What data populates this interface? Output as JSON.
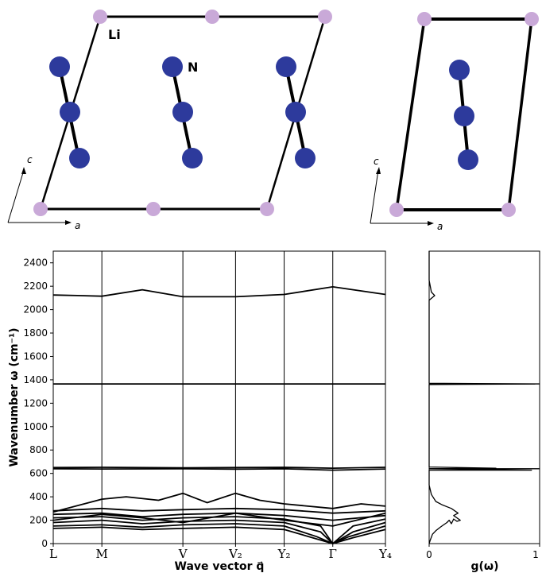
{
  "structure": {
    "atom_labels": {
      "lithium": "Li",
      "nitrogen": "N"
    },
    "axis_labels": {
      "vertical": "c",
      "horizontal": "a"
    },
    "colors": {
      "lithium": "#c9a9d8",
      "nitrogen": "#2d3a9c",
      "bond": "#000000"
    }
  },
  "chart_data": [
    {
      "type": "line",
      "name": "phonon-dispersion",
      "xlabel": "Wave vector q⃗",
      "ylabel": "Wavenumber ω (cm⁻¹)",
      "ylim": [
        0,
        2500
      ],
      "yticks": [
        0,
        200,
        400,
        600,
        800,
        1000,
        1200,
        1400,
        1600,
        1800,
        2000,
        2200,
        2400
      ],
      "kpoints": [
        "L",
        "M",
        "V",
        "V₂",
        "Y₂",
        "Γ",
        "Y₄"
      ],
      "kpoint_positions": [
        0,
        0.6,
        1.6,
        2.25,
        2.85,
        3.45,
        4.1
      ],
      "grid": "vertical lines at k-points",
      "series": [
        {
          "x": [
            0,
            0.3,
            0.6,
            1.1,
            1.6,
            2.25,
            2.85,
            3.45,
            4.1
          ],
          "y": [
            2125,
            2120,
            2115,
            2170,
            2110,
            2110,
            2130,
            2195,
            2130
          ]
        },
        {
          "x": [
            0,
            4.1
          ],
          "y": [
            1365,
            1365
          ]
        },
        {
          "x": [
            0,
            0.6,
            1.6,
            2.25,
            2.85,
            3.45,
            4.1
          ],
          "y": [
            650,
            652,
            648,
            650,
            652,
            645,
            652
          ]
        },
        {
          "x": [
            0,
            0.6,
            1.6,
            2.25,
            2.85,
            3.45,
            4.1
          ],
          "y": [
            640,
            638,
            640,
            636,
            640,
            628,
            638
          ]
        },
        {
          "x": [
            0,
            0.6,
            0.9,
            1.3,
            1.6,
            1.9,
            2.25,
            2.55,
            2.85,
            3.45,
            3.8,
            4.1
          ],
          "y": [
            270,
            380,
            400,
            370,
            430,
            350,
            430,
            370,
            340,
            300,
            340,
            320
          ]
        },
        {
          "x": [
            0,
            0.6,
            1.1,
            1.6,
            2.25,
            2.85,
            3.45,
            4.1
          ],
          "y": [
            280,
            300,
            280,
            290,
            300,
            290,
            260,
            280
          ]
        },
        {
          "x": [
            0,
            0.6,
            1.1,
            1.6,
            2.25,
            2.85,
            3.45,
            4.1
          ],
          "y": [
            250,
            260,
            230,
            250,
            260,
            240,
            200,
            240
          ]
        },
        {
          "x": [
            0,
            0.6,
            1.1,
            1.6,
            2.25,
            2.85,
            3.3,
            3.45,
            3.7,
            4.1
          ],
          "y": [
            220,
            230,
            200,
            220,
            230,
            210,
            150,
            0,
            150,
            210
          ]
        },
        {
          "x": [
            0,
            0.6,
            1.1,
            1.6,
            2.25,
            2.85,
            3.3,
            3.45,
            3.7,
            4.1
          ],
          "y": [
            180,
            200,
            170,
            190,
            200,
            180,
            100,
            0,
            100,
            180
          ]
        },
        {
          "x": [
            0,
            0.6,
            1.1,
            1.6,
            2.25,
            2.85,
            3.25,
            3.45,
            3.65,
            4.1
          ],
          "y": [
            150,
            160,
            140,
            160,
            170,
            150,
            60,
            0,
            60,
            150
          ]
        },
        {
          "x": [
            0,
            0.6,
            1.1,
            1.6,
            2.25,
            2.85,
            3.2,
            3.45,
            3.7,
            4.1
          ],
          "y": [
            130,
            140,
            120,
            130,
            140,
            120,
            50,
            0,
            50,
            120
          ]
        },
        {
          "x": [
            0,
            0.6,
            1.1,
            1.6,
            2.25,
            2.85,
            3.45,
            4.1
          ],
          "y": [
            200,
            250,
            220,
            180,
            260,
            200,
            150,
            260
          ]
        }
      ]
    },
    {
      "type": "line",
      "name": "density-of-states",
      "xlabel": "g(ω)",
      "xlim": [
        0,
        1
      ],
      "xticks": [
        0,
        1
      ],
      "ylim": [
        0,
        2500
      ],
      "series": [
        {
          "x": [
            0,
            0.01,
            0.03,
            0.06,
            0.1,
            0.13,
            0.16,
            0.18,
            0.2,
            0.22,
            0.25,
            0.28,
            0.22,
            0.26,
            0.2,
            0.12,
            0.06,
            0.02,
            0.0,
            0.0,
            0.92,
            0.0,
            0.6,
            0.0,
            0.0,
            0.95,
            0.0,
            0.0,
            0.05,
            0.02,
            0.0,
            0.0
          ],
          "y": [
            0,
            30,
            80,
            110,
            140,
            160,
            180,
            200,
            170,
            210,
            190,
            200,
            240,
            260,
            300,
            330,
            360,
            420,
            500,
            628,
            628,
            640,
            645,
            655,
            1360,
            1365,
            1370,
            2080,
            2120,
            2150,
            2250,
            2500
          ]
        }
      ]
    }
  ]
}
